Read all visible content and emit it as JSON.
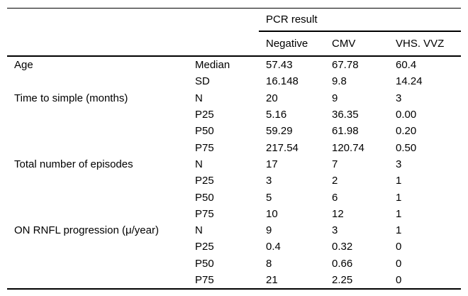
{
  "table": {
    "spanner_header": "PCR result",
    "columns": [
      "Negative",
      "CMV",
      "VHS. VVZ"
    ],
    "groups": [
      {
        "label": "Age",
        "rows": [
          {
            "stat": "Median",
            "values": [
              "57.43",
              "67.78",
              "60.4"
            ]
          },
          {
            "stat": "SD",
            "values": [
              "16.148",
              "9.8",
              "14.24"
            ]
          }
        ]
      },
      {
        "label": "Time to simple (months)",
        "rows": [
          {
            "stat": "N",
            "values": [
              "20",
              "9",
              "3"
            ]
          },
          {
            "stat": "P25",
            "values": [
              "5.16",
              "36.35",
              "0.00"
            ]
          },
          {
            "stat": "P50",
            "values": [
              "59.29",
              "61.98",
              "0.20"
            ]
          },
          {
            "stat": "P75",
            "values": [
              "217.54",
              "120.74",
              "0.50"
            ]
          }
        ]
      },
      {
        "label": "Total number of episodes",
        "rows": [
          {
            "stat": "N",
            "values": [
              "17",
              "7",
              "3"
            ]
          },
          {
            "stat": "P25",
            "values": [
              "3",
              "2",
              "1"
            ]
          },
          {
            "stat": "P50",
            "values": [
              "5",
              "6",
              "1"
            ]
          },
          {
            "stat": "P75",
            "values": [
              "10",
              "12",
              "1"
            ]
          }
        ]
      },
      {
        "label": "ON RNFL progression (μ/year)",
        "rows": [
          {
            "stat": "N",
            "values": [
              "9",
              "3",
              "1"
            ]
          },
          {
            "stat": "P25",
            "values": [
              "0.4",
              "0.32",
              "0"
            ]
          },
          {
            "stat": "P50",
            "values": [
              "8",
              "0.66",
              "0"
            ]
          },
          {
            "stat": "P75",
            "values": [
              "21",
              "2.25",
              "0"
            ]
          }
        ]
      }
    ],
    "colors": {
      "text": "#000000",
      "background": "#ffffff",
      "rule": "#000000"
    }
  }
}
